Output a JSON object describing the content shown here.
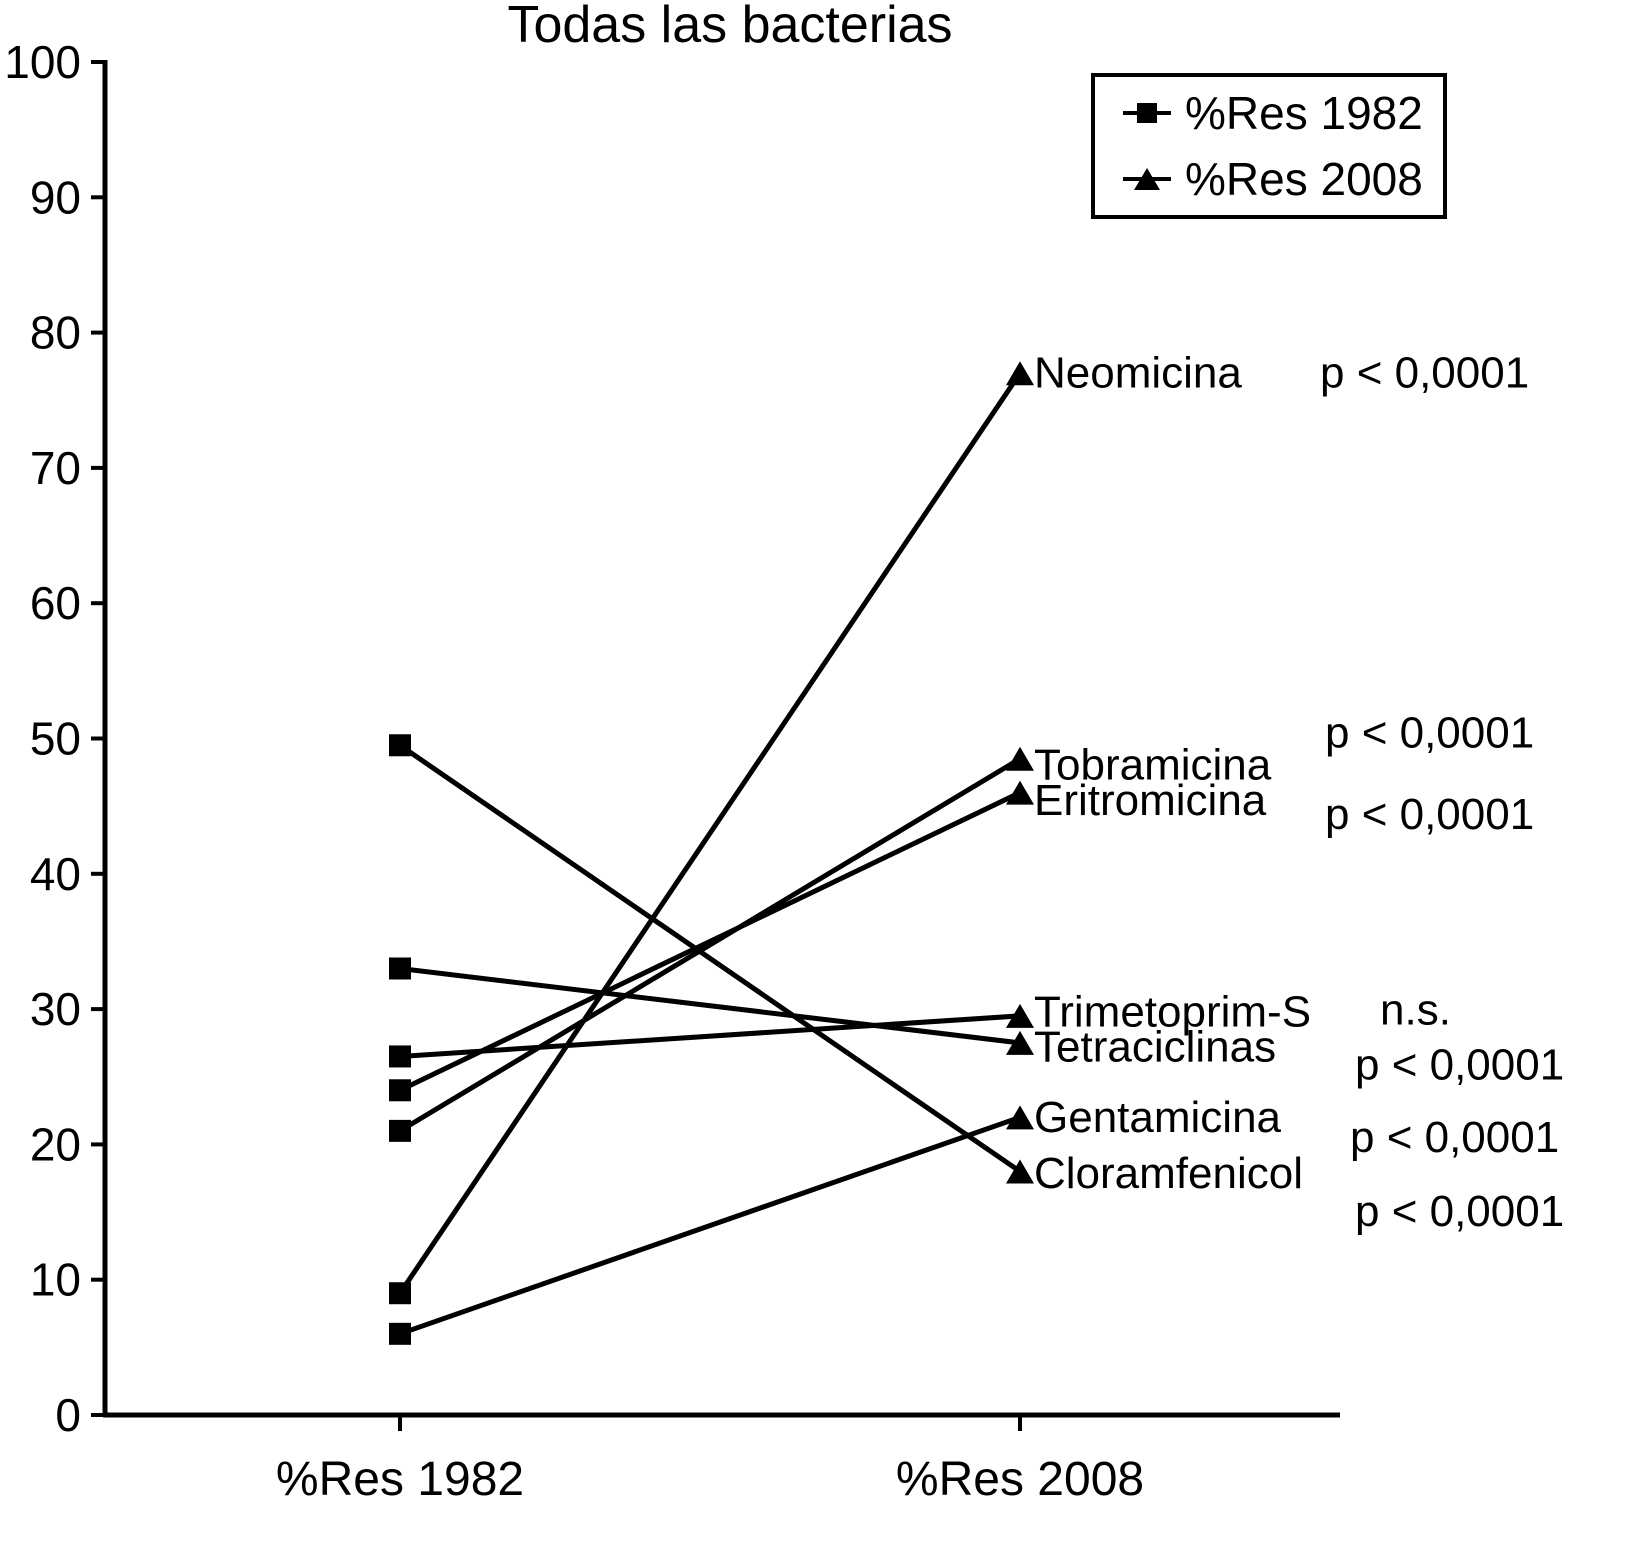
{
  "title": "Todas las bacterias",
  "legend": {
    "items": [
      {
        "label": "%Res 1982",
        "marker": "square"
      },
      {
        "label": "%Res 2008",
        "marker": "triangle"
      }
    ]
  },
  "axes": {
    "y_ticks": [
      0,
      10,
      20,
      30,
      40,
      50,
      60,
      70,
      80,
      90,
      100
    ],
    "x_categories": [
      "%Res 1982",
      "%Res 2008"
    ]
  },
  "chart_data": {
    "type": "line",
    "subtype": "slopegraph",
    "title": "Todas las bacterias",
    "categories": [
      "%Res 1982",
      "%Res 2008"
    ],
    "ylim": [
      0,
      100
    ],
    "grid": false,
    "legend_position": "top-right",
    "colors": {
      "line": "#000000",
      "background": "#ffffff",
      "text": "#000000"
    },
    "series": [
      {
        "name": "Neomicina",
        "values": [
          9,
          77
        ],
        "p_label": "p < 0,0001"
      },
      {
        "name": "Tobramicina",
        "values": [
          21,
          48.5
        ],
        "p_label": "p < 0,0001"
      },
      {
        "name": "Eritromicina",
        "values": [
          24,
          46
        ],
        "p_label": "p < 0,0001"
      },
      {
        "name": "Trimetoprim-S",
        "values": [
          26.5,
          29.5
        ],
        "p_label": "n.s."
      },
      {
        "name": "Tetraciclinas",
        "values": [
          33,
          27.5
        ],
        "p_label": "p < 0,0001"
      },
      {
        "name": "Gentamicina",
        "values": [
          6,
          22
        ],
        "p_label": "p < 0,0001"
      },
      {
        "name": "Cloramfenicol",
        "values": [
          49.5,
          18
        ],
        "p_label": "p < 0,0001"
      }
    ]
  }
}
